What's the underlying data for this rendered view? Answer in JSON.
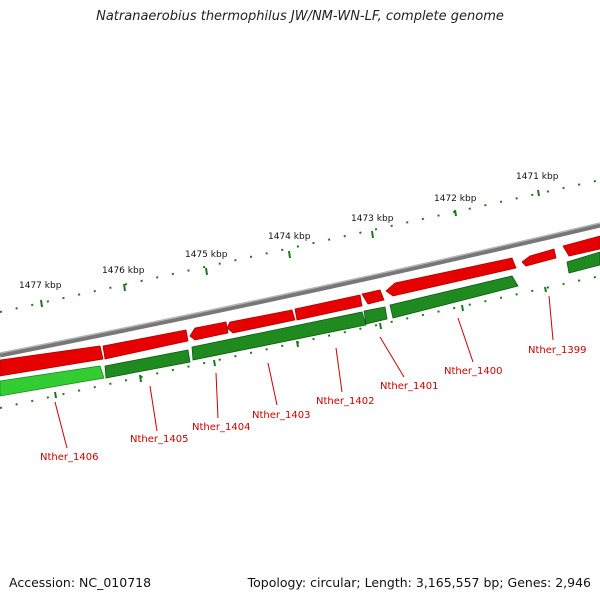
{
  "title": "Natranaerobius thermophilus JW/NM-WN-LF, complete genome",
  "accession_text": "Accession: NC_010718",
  "summary_text": "Topology: circular; Length: 3,165,557 bp; Genes: 2,946",
  "ruler_labels": [
    "1471 kbp",
    "1472 kbp",
    "1473 kbp",
    "1474 kbp",
    "1475 kbp",
    "1476 kbp",
    "1477 kbp"
  ],
  "gene_labels": [
    "Nther_1399",
    "Nther_1400",
    "Nther_1401",
    "Nther_1402",
    "Nther_1403",
    "Nther_1404",
    "Nther_1405",
    "Nther_1406"
  ],
  "colors": {
    "forward_strand": "#ee0000",
    "reverse_strand": "#1f8a1f",
    "reverse_strand_highlight": "#33cc33",
    "backbone": "#888888",
    "ticks": "#1a7a1a",
    "label_text": "#cc0000"
  }
}
